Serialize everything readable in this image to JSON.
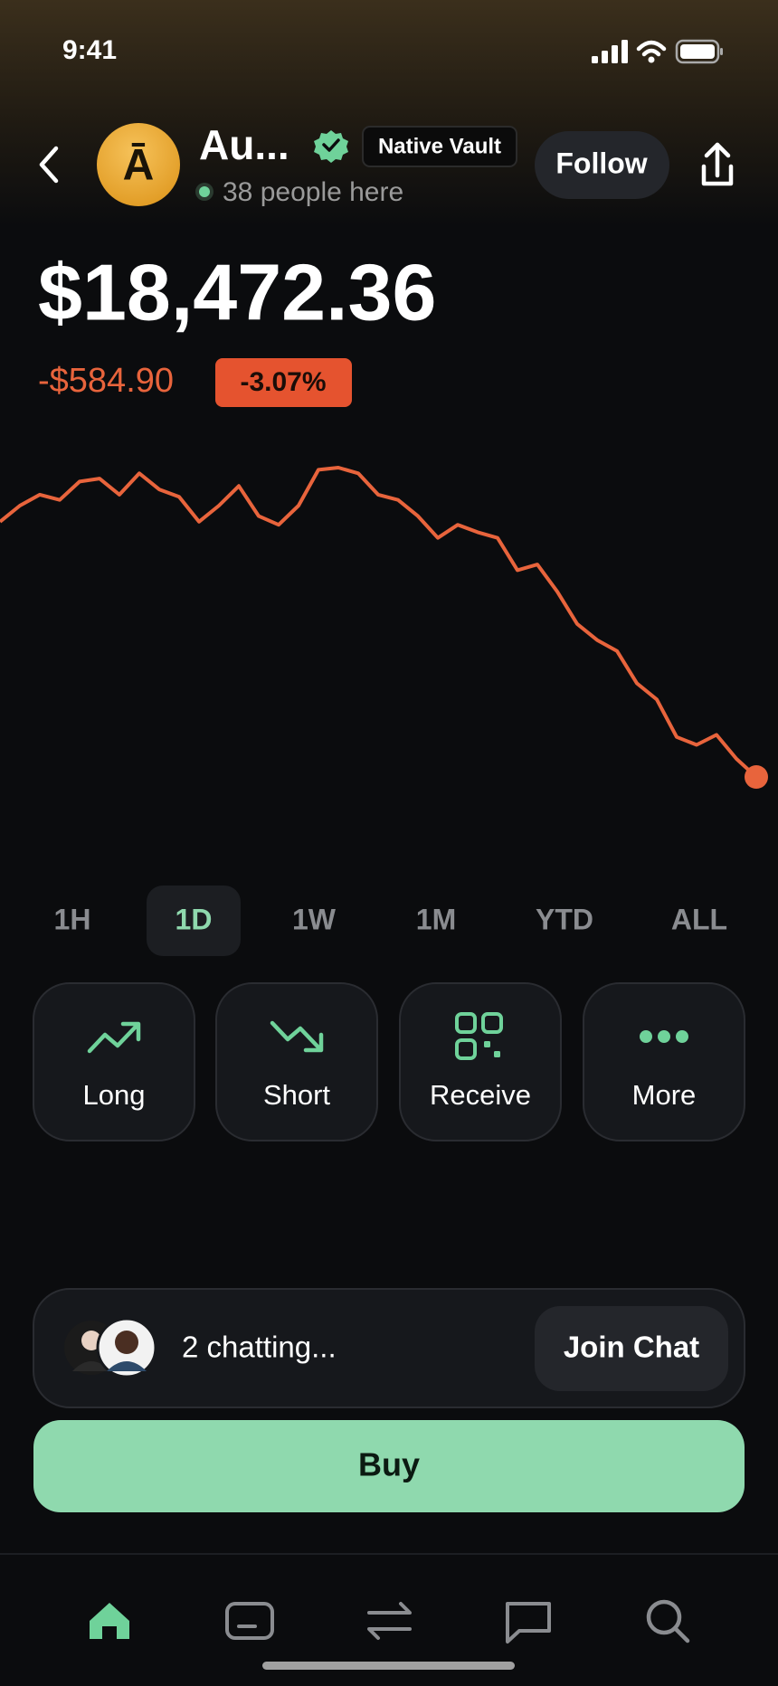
{
  "status_bar": {
    "time": "9:41"
  },
  "header": {
    "avatar_letter": "Ā",
    "name": "Au...",
    "badge": "Native Vault",
    "presence": "38 people here",
    "follow": "Follow"
  },
  "price": {
    "value": "$18,472.36",
    "change": "-$584.90",
    "change_percent": "-3.07%"
  },
  "chart": {
    "type": "line",
    "color": "#e8643c",
    "values": [
      19057,
      19094,
      19119,
      19107,
      19149,
      19156,
      19119,
      19168,
      19131,
      19114,
      19057,
      19094,
      19139,
      19070,
      19050,
      19094,
      19176,
      19181,
      19168,
      19119,
      19107,
      19070,
      19020,
      19050,
      19033,
      19020,
      18946,
      18959,
      18897,
      18823,
      18786,
      18761,
      18687,
      18650,
      18564,
      18546,
      18569,
      18514,
      18472.36
    ]
  },
  "timeframes": {
    "options": [
      "1H",
      "1D",
      "1W",
      "1M",
      "YTD",
      "ALL"
    ],
    "selected": 1
  },
  "actions": [
    {
      "label": "Long"
    },
    {
      "label": "Short"
    },
    {
      "label": "Receive"
    },
    {
      "label": "More"
    }
  ],
  "chat": {
    "status": "2 chatting...",
    "button": "Join Chat"
  },
  "buy": {
    "label": "Buy"
  }
}
